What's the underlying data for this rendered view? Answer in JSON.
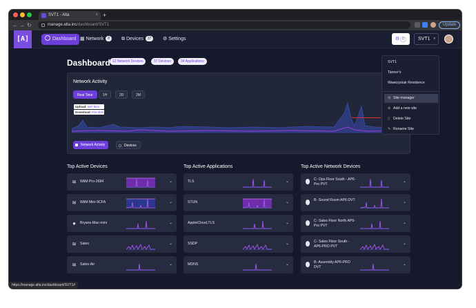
{
  "browser": {
    "tab_title": "SVT1 - Alta",
    "tab_close": "×",
    "new_tab": "+",
    "url_host": "manage.alta.inc",
    "url_path": "/dashboard/SVT1",
    "update_label": "Update",
    "status_url": "https://manage.alta.inc/dashboard/SVT1#"
  },
  "logo": "[A]",
  "nav": {
    "dashboard": "Dashboard",
    "network": "Network",
    "network_badge": "8",
    "devices": "Devices",
    "devices_badge": "37",
    "settings": "Settings",
    "gear_badge": "0",
    "site": "SVT1"
  },
  "page": {
    "title": "Dashboard",
    "pills": [
      "12 Network Devices",
      "37 Devices",
      "34 Applications"
    ]
  },
  "network_activity": {
    "title": "Network Activity",
    "ranges": [
      "Real Time",
      "1H",
      "2D",
      "2M"
    ],
    "upload_label": "Upload:",
    "upload_value": "587 kb/s",
    "download_label": "Download:",
    "download_value": "815 kb/s",
    "toggle_network": "Network Activity",
    "toggle_devices": "Devices"
  },
  "sections": {
    "devices_title": "Top Active Devices",
    "apps_title": "Top Active Applications",
    "netdev_title": "Top Active Network Devices"
  },
  "top_devices": [
    "WiiM Pro-2684",
    "WiiM Mini-9CFA",
    "Bryans-Mac-mini",
    "Sales",
    "Sales-Air"
  ],
  "top_apps": [
    "TLS",
    "STUN",
    "AppleiCloud,TLS",
    "SSDP",
    "MDNS"
  ],
  "top_netdevices": [
    "C- Ops Floor South - AP6-Pro PVT",
    "B- Sound Room AP6 DVT",
    "C- Sales Floor North AP6-Pro PVT",
    "C- Sales Floor South - AP6-PRO PVT",
    "B- Assembly AP6-PRO DVT"
  ],
  "dropdown": {
    "sites": [
      "SVT1",
      "Tanner's",
      "Wawrzyniak Residence"
    ],
    "actions": [
      "Site manager",
      "Add a new site",
      "Delete Site",
      "Rename Site"
    ]
  },
  "colors": {
    "accent": "#6c3fd9",
    "background": "#16192b",
    "card": "#222639",
    "upload_line": "#3b4ea8",
    "download_line": "#a23ad9",
    "annotation_arrow": "#e0302a"
  },
  "icons": {
    "gear": "⚙",
    "chevron": "⌄",
    "wifi": "wifi-icon",
    "apple": "apple-icon",
    "ap": "access-point-icon"
  }
}
